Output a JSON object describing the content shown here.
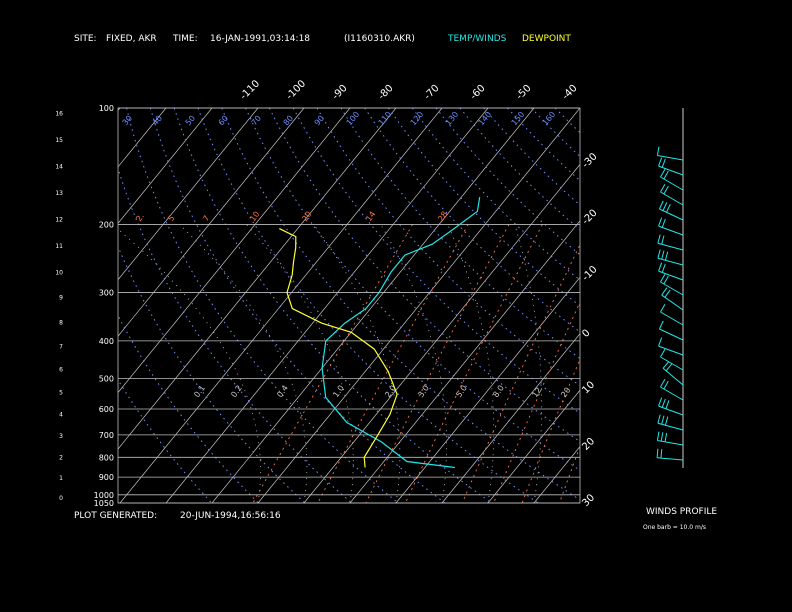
{
  "header": {
    "site_label": "SITE:",
    "site_value": "FIXED, AKR",
    "time_label": "TIME:",
    "time_value": "16-JAN-1991,03:14:18",
    "file_id": "(I1160310.AKR)",
    "legend_temp": "TEMP/WINDS",
    "legend_dew": "DEWPOINT"
  },
  "footer": {
    "generated_label": "PLOT GENERATED:",
    "generated_value": "20-JUN-1994,16:56:16"
  },
  "winds": {
    "title": "WINDS PROFILE",
    "note": "One barb = 10.0 m/s"
  },
  "colors": {
    "temperature": "#22e6e6",
    "dewpoint": "#ffff33",
    "isotherm": "#c8c8c8",
    "dry_adiabat": "#6f8fff",
    "mixing_ratio": "#ff7040",
    "moist_adiabat": "#c8c8c8"
  },
  "chart_data": {
    "type": "line",
    "title": "",
    "pressure_levels": [
      100,
      200,
      300,
      400,
      500,
      600,
      700,
      800,
      900,
      1000,
      1050
    ],
    "pressure_labels": [
      "100",
      "200",
      "300",
      "400",
      "500",
      "600",
      "700",
      "800",
      "900",
      "1000",
      "1050"
    ],
    "height_labels": [
      "0",
      "1",
      "2",
      "3",
      "4",
      "5",
      "6",
      "7",
      "8",
      "9",
      "10",
      "11",
      "12",
      "13",
      "14",
      "15",
      "16"
    ],
    "height_values": [
      0,
      1,
      2,
      3,
      4,
      5,
      6,
      7,
      8,
      9,
      10,
      11,
      12,
      13,
      14,
      15,
      16
    ],
    "isotherm_top_labels": [
      "-110",
      "-100",
      "-90",
      "-80",
      "-70",
      "-60",
      "-50",
      "-40"
    ],
    "isotherm_top_values": [
      -110,
      -100,
      -90,
      -80,
      -70,
      -60,
      -50,
      -40
    ],
    "isotherm_right_labels": [
      "-30",
      "-20",
      "-10",
      "0",
      "10",
      "20",
      "30"
    ],
    "isotherm_right_values": [
      -30,
      -20,
      -10,
      0,
      10,
      20,
      30
    ],
    "dry_adiabat_labels": [
      "30",
      "40",
      "50",
      "60",
      "70",
      "80",
      "90",
      "100",
      "110",
      "120",
      "130",
      "140",
      "150",
      "160"
    ],
    "mixing_ratio_labels": [
      "2.",
      "5",
      "7",
      "10",
      "20",
      "14",
      "28"
    ],
    "moist_adiabat_labels": [
      "0.1",
      "0.2",
      "0.4",
      "1.0",
      "2.0",
      "3.0",
      "5.0",
      "8.0",
      "12",
      "20"
    ],
    "series": [
      {
        "name": "TEMP/WINDS",
        "x_temp_c": [
          -3.5,
          -15,
          -24,
          -35,
          -44,
          -50,
          -54,
          -53,
          -51,
          -51,
          -52,
          -52,
          -48,
          -46,
          -44,
          -46
        ],
        "p_hpa": [
          850,
          820,
          730,
          650,
          560,
          470,
          400,
          360,
          330,
          300,
          265,
          240,
          225,
          205,
          185,
          170
        ]
      },
      {
        "name": "DEWPOINT",
        "x_temp_c": [
          -23,
          -25,
          -26,
          -27,
          -29,
          -35,
          -42,
          -50,
          -58,
          -67,
          -71,
          -73,
          -75,
          -77,
          -79,
          -84
        ],
        "p_hpa": [
          850,
          800,
          700,
          620,
          550,
          480,
          420,
          380,
          360,
          330,
          300,
          270,
          250,
          230,
          215,
          205
        ]
      }
    ],
    "winds_profile": {
      "speed_ms": [
        12,
        18,
        15,
        22,
        25,
        20,
        24,
        26,
        22,
        19,
        16,
        14,
        12,
        10,
        14,
        18,
        22,
        28,
        30,
        26,
        22
      ],
      "dir_deg": [
        280,
        290,
        300,
        300,
        295,
        290,
        285,
        285,
        290,
        300,
        305,
        300,
        295,
        290,
        300,
        310,
        300,
        290,
        285,
        280,
        275
      ]
    }
  }
}
